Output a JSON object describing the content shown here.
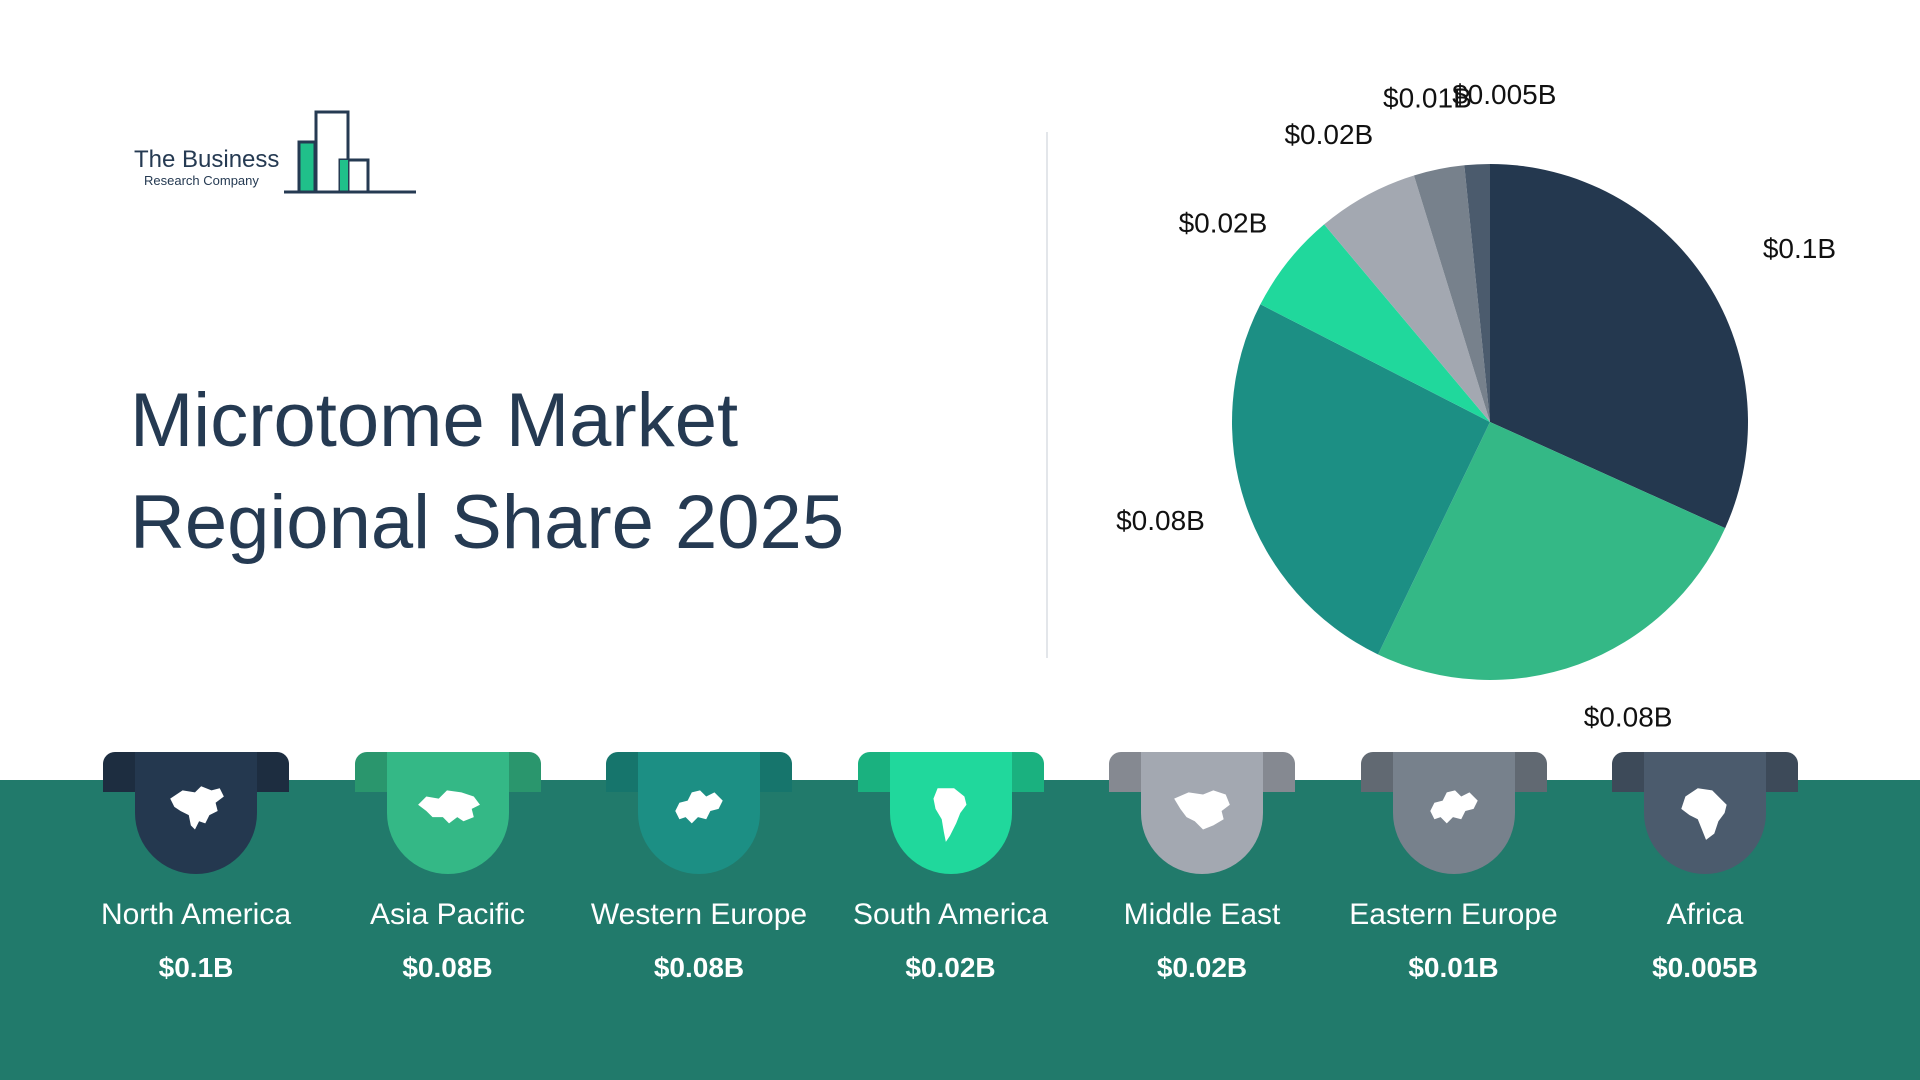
{
  "logo": {
    "line1": "The Business",
    "line2": "Research Company"
  },
  "title": {
    "line1": "Microtome Market",
    "line2": "Regional Share 2025"
  },
  "chart_data": {
    "type": "pie",
    "title": "Microtome Market Regional Share 2025",
    "categories": [
      "North America",
      "Asia Pacific",
      "Western Europe",
      "South America",
      "Middle East",
      "Eastern Europe",
      "Africa"
    ],
    "values": [
      0.1,
      0.08,
      0.08,
      0.02,
      0.02,
      0.01,
      0.005
    ],
    "labels": [
      "$0.1B",
      "$0.08B",
      "$0.08B",
      "$0.02B",
      "$0.02B",
      "$0.01B",
      "$0.005B"
    ],
    "colors": [
      "#24384f",
      "#34b886",
      "#1c8f84",
      "#20d89c",
      "#a3a8b1",
      "#77818c",
      "#4b5b6d"
    ],
    "unit": "B"
  },
  "regions": [
    {
      "name": "North America",
      "value": "$0.1B",
      "color": "#24384f",
      "icon": "north-america-map-icon"
    },
    {
      "name": "Asia Pacific",
      "value": "$0.08B",
      "color": "#34b886",
      "icon": "asia-map-icon"
    },
    {
      "name": "Western Europe",
      "value": "$0.08B",
      "color": "#1c8f84",
      "icon": "europe-map-icon"
    },
    {
      "name": "South America",
      "value": "$0.02B",
      "color": "#20d89c",
      "icon": "south-america-map-icon"
    },
    {
      "name": "Middle East",
      "value": "$0.02B",
      "color": "#a3a8b1",
      "icon": "middle-east-map-icon"
    },
    {
      "name": "Eastern Europe",
      "value": "$0.01B",
      "color": "#77818c",
      "icon": "europe-map-icon"
    },
    {
      "name": "Africa",
      "value": "$0.005B",
      "color": "#4b5b6d",
      "icon": "africa-map-icon"
    }
  ],
  "colors": {
    "band": "#217a6b",
    "title": "#253a52",
    "accent": "#20c08a"
  }
}
